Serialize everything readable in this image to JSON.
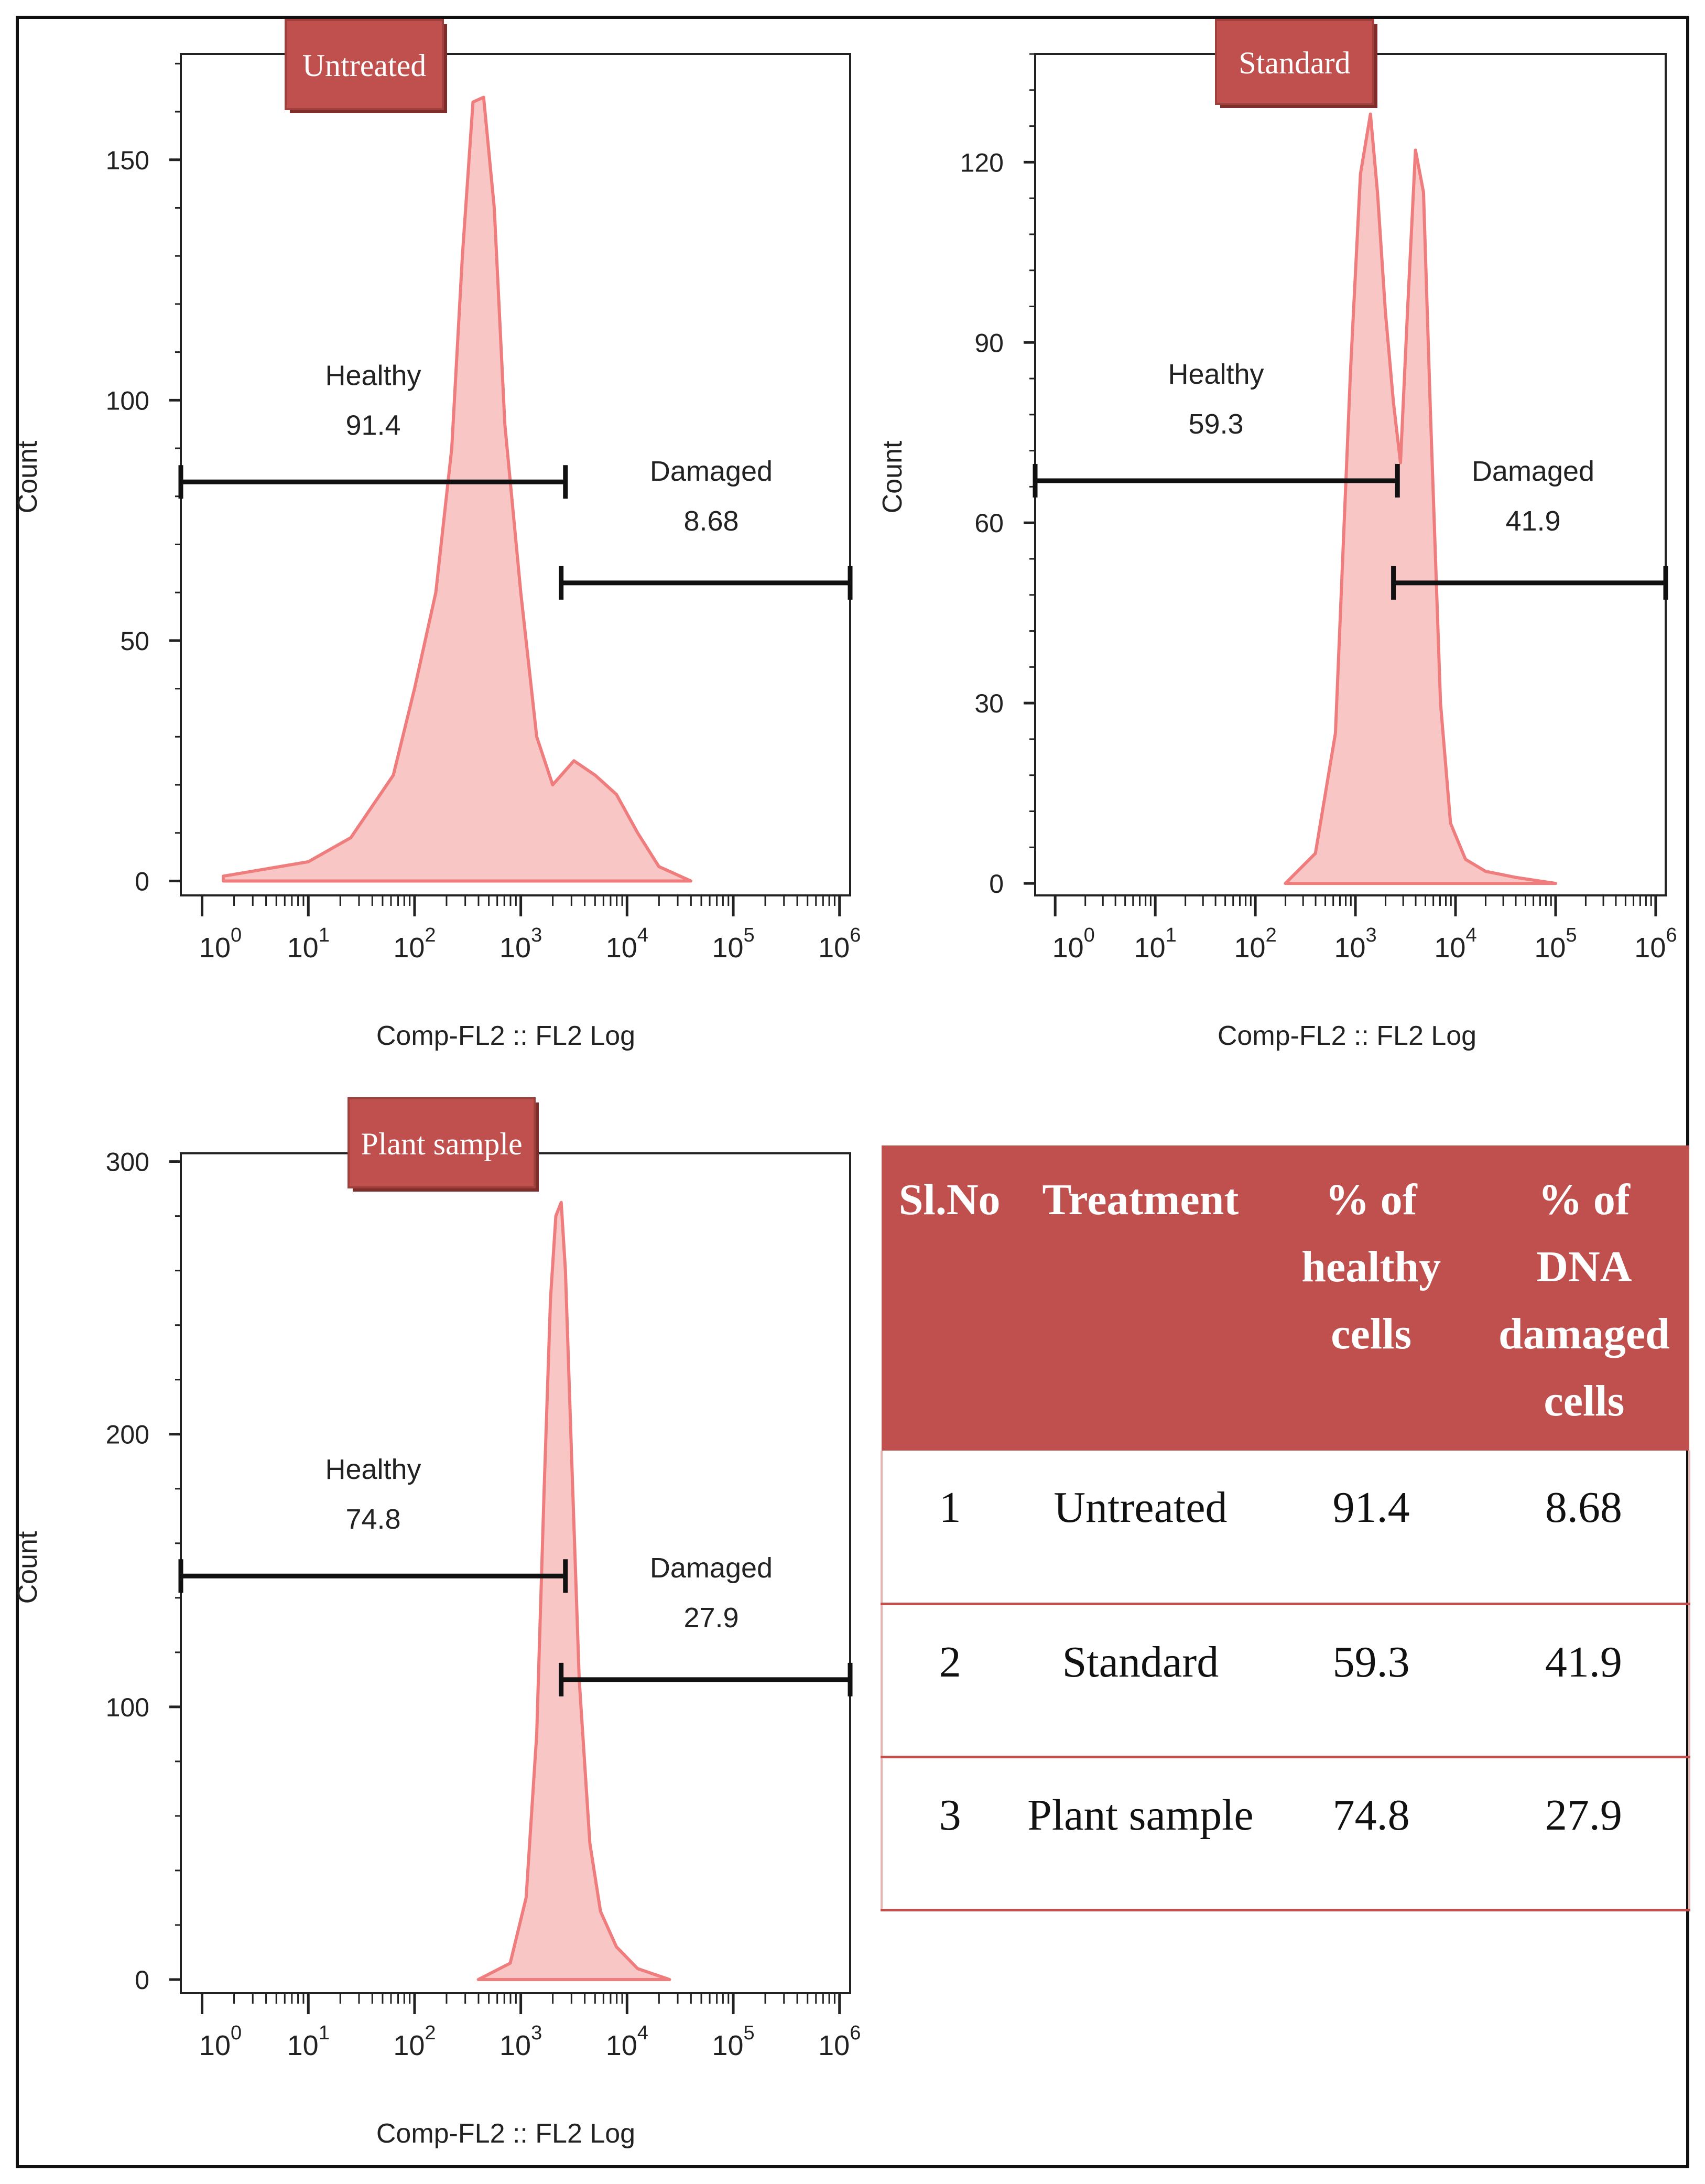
{
  "colors": {
    "hist_fill": "#f9c6c6",
    "hist_line": "#ef7d7d",
    "header_bg": "#c0504d",
    "tag_bg": "#c0504d"
  },
  "chart_data": [
    {
      "type": "area",
      "title": "Untreated",
      "xlabel": "Comp-FL2 :: FL2 Log",
      "ylabel": "Count",
      "x_scale": "log",
      "xlim_log10": [
        -0.2,
        6.1
      ],
      "ylim": [
        -3,
        172
      ],
      "yticks": [
        0,
        50,
        100,
        150
      ],
      "xticks": [
        {
          "base": "10",
          "exp": "0"
        },
        {
          "base": "10",
          "exp": "1"
        },
        {
          "base": "10",
          "exp": "2"
        },
        {
          "base": "10",
          "exp": "3"
        },
        {
          "base": "10",
          "exp": "4"
        },
        {
          "base": "10",
          "exp": "5"
        },
        {
          "base": "10",
          "exp": "6"
        }
      ],
      "histogram_log10x": [
        0.2,
        1.0,
        1.4,
        1.8,
        2.0,
        2.2,
        2.35,
        2.45,
        2.55,
        2.65,
        2.75,
        2.85,
        3.0,
        3.15,
        3.3,
        3.5,
        3.7,
        3.9,
        4.1,
        4.3,
        4.6
      ],
      "histogram_counts": [
        1,
        4,
        9,
        22,
        40,
        60,
        90,
        130,
        162,
        163,
        140,
        95,
        60,
        30,
        20,
        25,
        22,
        18,
        10,
        3,
        0
      ],
      "gates": [
        {
          "name": "Healthy",
          "value": "91.4",
          "from_log10x": -0.2,
          "to_log10x": 3.42,
          "y": 83
        },
        {
          "name": "Damaged",
          "value": "8.68",
          "from_log10x": 3.38,
          "to_log10x": 6.1,
          "y": 62
        }
      ],
      "tag": "Untreated"
    },
    {
      "type": "area",
      "title": "Standard",
      "xlabel": "Comp-FL2 :: FL2 Log",
      "ylabel": "Count",
      "x_scale": "log",
      "xlim_log10": [
        -0.2,
        6.1
      ],
      "ylim": [
        -2,
        138
      ],
      "yticks": [
        0,
        30,
        60,
        90,
        120
      ],
      "xticks": [
        {
          "base": "10",
          "exp": "0"
        },
        {
          "base": "10",
          "exp": "1"
        },
        {
          "base": "10",
          "exp": "2"
        },
        {
          "base": "10",
          "exp": "3"
        },
        {
          "base": "10",
          "exp": "4"
        },
        {
          "base": "10",
          "exp": "5"
        },
        {
          "base": "10",
          "exp": "6"
        }
      ],
      "histogram_log10x": [
        2.3,
        2.6,
        2.8,
        2.95,
        3.05,
        3.15,
        3.22,
        3.3,
        3.38,
        3.45,
        3.52,
        3.6,
        3.68,
        3.75,
        3.85,
        3.95,
        4.1,
        4.3,
        4.6,
        5.0
      ],
      "histogram_counts": [
        0,
        5,
        25,
        85,
        118,
        128,
        115,
        95,
        80,
        70,
        95,
        122,
        115,
        78,
        30,
        10,
        4,
        2,
        1,
        0
      ],
      "gates": [
        {
          "name": "Healthy",
          "value": "59.3",
          "from_log10x": -0.2,
          "to_log10x": 3.42,
          "y": 67
        },
        {
          "name": "Damaged",
          "value": "41.9",
          "from_log10x": 3.38,
          "to_log10x": 6.1,
          "y": 50
        }
      ],
      "tag": "Standard"
    },
    {
      "type": "area",
      "title": "Plant sample",
      "xlabel": "Comp-FL2 :: FL2 Log",
      "ylabel": "Count",
      "x_scale": "log",
      "xlim_log10": [
        -0.2,
        6.1
      ],
      "ylim": [
        -5,
        303
      ],
      "yticks": [
        0,
        100,
        200,
        300
      ],
      "xticks": [
        {
          "base": "10",
          "exp": "0"
        },
        {
          "base": "10",
          "exp": "1"
        },
        {
          "base": "10",
          "exp": "2"
        },
        {
          "base": "10",
          "exp": "3"
        },
        {
          "base": "10",
          "exp": "4"
        },
        {
          "base": "10",
          "exp": "5"
        },
        {
          "base": "10",
          "exp": "6"
        }
      ],
      "histogram_log10x": [
        2.6,
        2.9,
        3.05,
        3.15,
        3.22,
        3.28,
        3.33,
        3.38,
        3.42,
        3.48,
        3.55,
        3.65,
        3.75,
        3.9,
        4.1,
        4.4
      ],
      "histogram_counts": [
        0,
        6,
        30,
        90,
        180,
        250,
        280,
        285,
        260,
        190,
        110,
        50,
        25,
        12,
        4,
        0
      ],
      "gates": [
        {
          "name": "Healthy",
          "value": "74.8",
          "from_log10x": -0.2,
          "to_log10x": 3.42,
          "y": 148
        },
        {
          "name": "Damaged",
          "value": "27.9",
          "from_log10x": 3.38,
          "to_log10x": 6.1,
          "y": 110
        }
      ],
      "tag": "Plant sample"
    }
  ],
  "table": {
    "headers": [
      "Sl.No",
      "Treatment",
      "% of healthy cells",
      "% of DNA damaged cells"
    ],
    "rows": [
      [
        "1",
        "Untreated",
        "91.4",
        "8.68"
      ],
      [
        "2",
        "Standard",
        "59.3",
        "41.9"
      ],
      [
        "3",
        "Plant sample",
        "74.8",
        "27.9"
      ]
    ]
  }
}
